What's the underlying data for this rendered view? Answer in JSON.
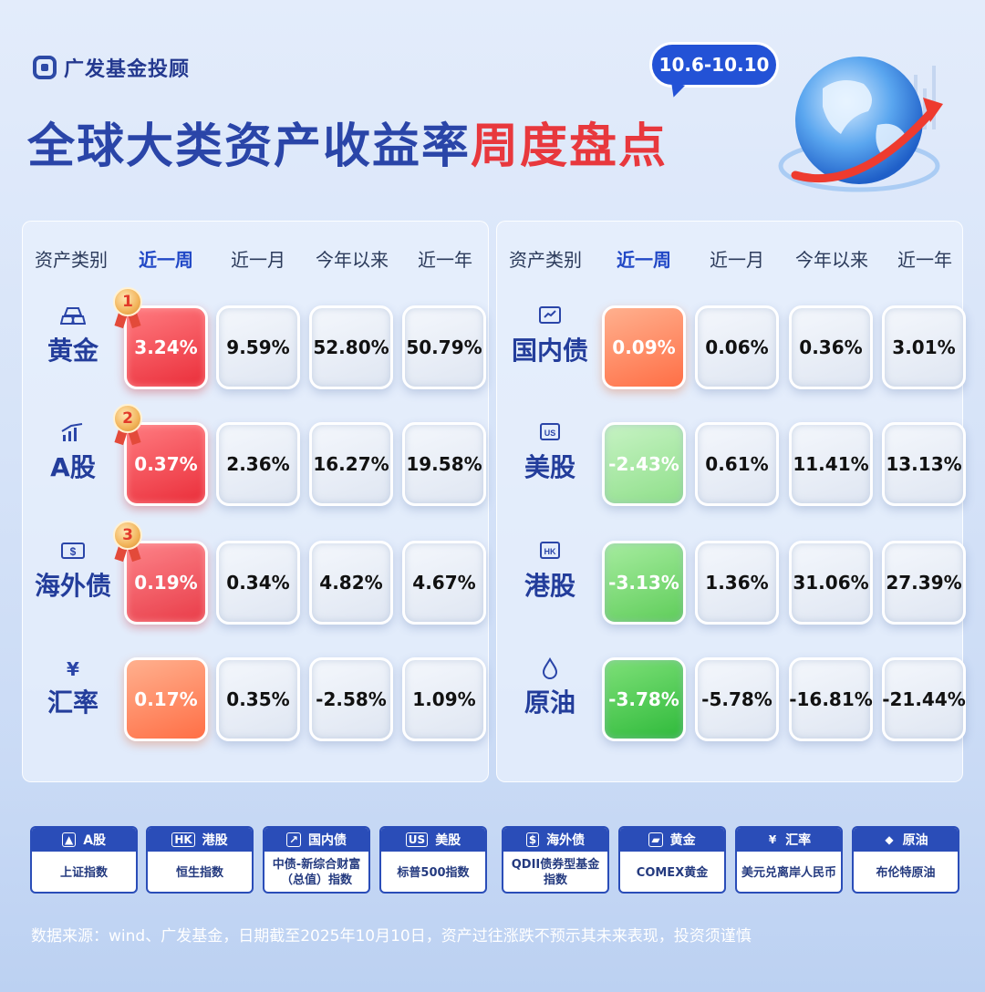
{
  "brand": {
    "name": "广发基金投顾"
  },
  "date_range": "10.6-10.10",
  "title": {
    "part1": "全球大类资产收益率",
    "part2": "周度盘点"
  },
  "columns": [
    "资产类别",
    "近一周",
    "近一月",
    "今年以来",
    "近一年"
  ],
  "left_rows": [
    {
      "name": "黄金",
      "icon": "gold-bar-icon",
      "rank": "1",
      "values": [
        "3.24%",
        "9.59%",
        "52.80%",
        "50.79%"
      ]
    },
    {
      "name": "A股",
      "icon": "chart-up-icon",
      "rank": "2",
      "values": [
        "0.37%",
        "2.36%",
        "16.27%",
        "19.58%"
      ]
    },
    {
      "name": "海外债",
      "icon": "dollar-bill-icon",
      "rank": "3",
      "values": [
        "0.19%",
        "0.34%",
        "4.82%",
        "4.67%"
      ]
    },
    {
      "name": "汇率",
      "icon": "yen-icon",
      "rank": "",
      "values": [
        "0.17%",
        "0.35%",
        "-2.58%",
        "1.09%"
      ]
    }
  ],
  "right_rows": [
    {
      "name": "国内债",
      "icon": "bond-icon",
      "values": [
        "0.09%",
        "0.06%",
        "0.36%",
        "3.01%"
      ]
    },
    {
      "name": "美股",
      "icon": "us-badge-icon",
      "values": [
        "-2.43%",
        "0.61%",
        "11.41%",
        "13.13%"
      ]
    },
    {
      "name": "港股",
      "icon": "hk-badge-icon",
      "values": [
        "-3.13%",
        "1.36%",
        "31.06%",
        "27.39%"
      ]
    },
    {
      "name": "原油",
      "icon": "oil-drop-icon",
      "values": [
        "-3.78%",
        "-5.78%",
        "-16.81%",
        "-21.44%"
      ]
    }
  ],
  "legend": [
    {
      "name": "A股",
      "index": "上证指数"
    },
    {
      "name": "港股",
      "index": "恒生指数"
    },
    {
      "name": "国内债",
      "index": "中债-新综合财富（总值）指数"
    },
    {
      "name": "美股",
      "index": "标普500指数"
    },
    {
      "name": "海外债",
      "index": "QDII债券型基金指数"
    },
    {
      "name": "黄金",
      "index": "COMEX黄金"
    },
    {
      "name": "汇率",
      "index": "美元兑离岸人民币"
    },
    {
      "name": "原油",
      "index": "布伦特原油"
    }
  ],
  "footer": "数据来源：wind、广发基金，日期截至2025年10月10日，资产过往涨跌不预示其未来表现，投资须谨慎",
  "colors": {
    "brand_blue": "#2a45a8",
    "accent_red": "#e8383d",
    "bubble_blue": "#2352d6"
  }
}
